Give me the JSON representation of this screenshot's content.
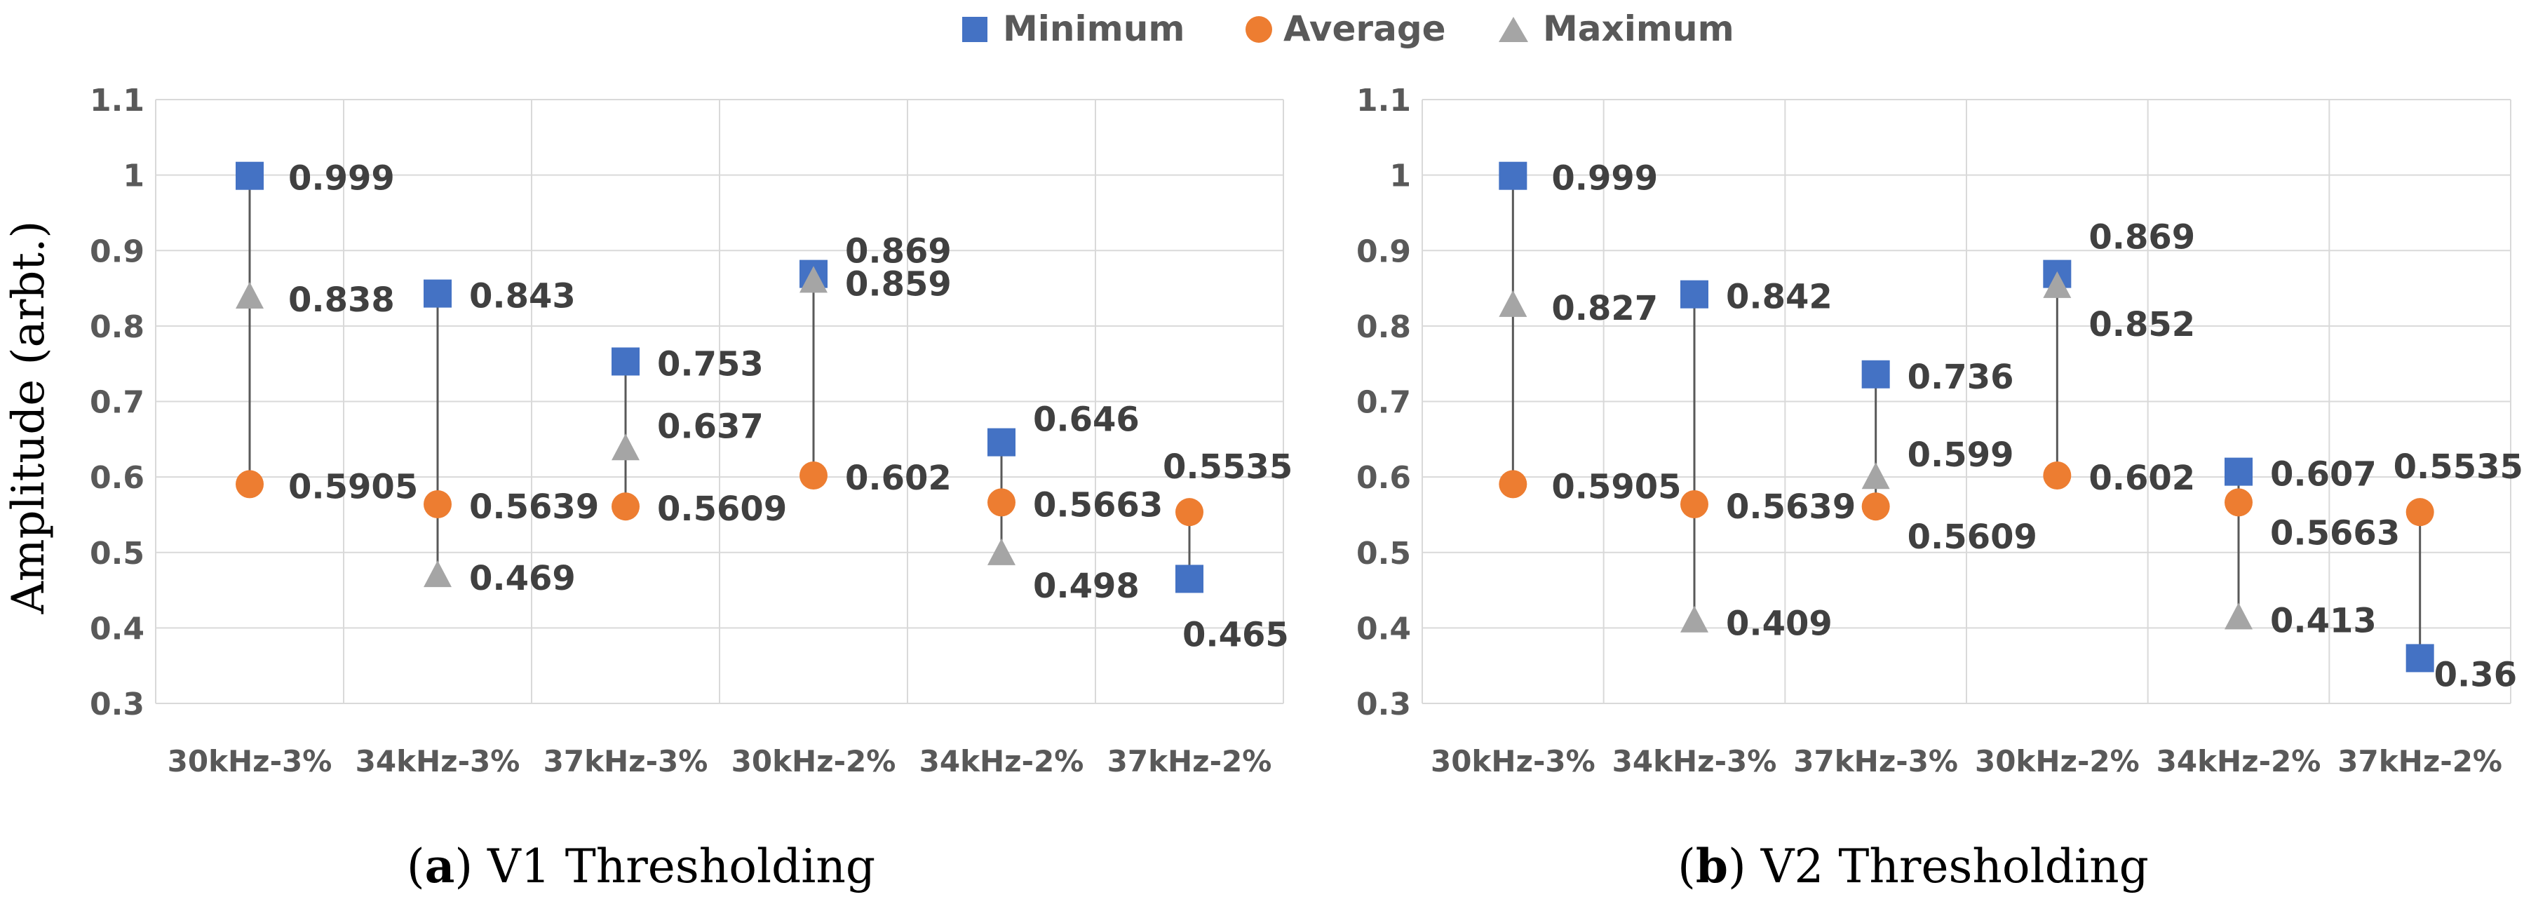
{
  "y_axis_label": "Amplitude (arbt.)",
  "legend": [
    {
      "name": "Minimum",
      "color": "#4472C4",
      "shape": "square"
    },
    {
      "name": "Average",
      "color": "#ED7D31",
      "shape": "circle"
    },
    {
      "name": "Maximum",
      "color": "#A5A5A5",
      "shape": "triangle"
    }
  ],
  "chart_data": [
    {
      "type": "scatter",
      "caption_letter": "a",
      "caption_text": " V1 Thresholding",
      "categories": [
        "30kHz-3%",
        "34kHz-3%",
        "37kHz-3%",
        "30kHz-2%",
        "34kHz-2%",
        "37kHz-2%"
      ],
      "series": [
        {
          "name": "Minimum",
          "values": [
            0.999,
            0.843,
            0.753,
            0.869,
            0.646,
            0.465
          ]
        },
        {
          "name": "Average",
          "values": [
            0.5905,
            0.5639,
            0.5609,
            0.602,
            0.5663,
            0.5535
          ]
        },
        {
          "name": "Maximum",
          "values": [
            0.838,
            0.469,
            0.637,
            0.859,
            0.498,
            null
          ]
        }
      ],
      "ylim": [
        0.3,
        1.1
      ],
      "yticks": [
        "0.3",
        "0.4",
        "0.5",
        "0.6",
        "0.7",
        "0.8",
        "0.9",
        "1",
        "1.1"
      ],
      "labels": {
        "Minimum": [
          "0.999",
          "0.843",
          "0.753",
          "0.869",
          "0.646",
          "0.465"
        ],
        "Average": [
          "0.5905",
          "0.5639",
          "0.5609",
          "0.602",
          "0.5663",
          "0.5535"
        ],
        "Maximum": [
          "0.838",
          "0.469",
          "0.637",
          "0.859",
          "0.498",
          ""
        ]
      }
    },
    {
      "type": "scatter",
      "caption_letter": "b",
      "caption_text": " V2 Thresholding",
      "categories": [
        "30kHz-3%",
        "34kHz-3%",
        "37kHz-3%",
        "30kHz-2%",
        "34kHz-2%",
        "37kHz-2%"
      ],
      "series": [
        {
          "name": "Minimum",
          "values": [
            0.999,
            0.842,
            0.736,
            0.869,
            0.607,
            0.36
          ]
        },
        {
          "name": "Average",
          "values": [
            0.5905,
            0.5639,
            0.5609,
            0.602,
            0.5663,
            0.5535
          ]
        },
        {
          "name": "Maximum",
          "values": [
            0.827,
            0.409,
            0.599,
            0.852,
            0.413,
            null
          ]
        }
      ],
      "ylim": [
        0.3,
        1.1
      ],
      "yticks": [
        "0.3",
        "0.4",
        "0.5",
        "0.6",
        "0.7",
        "0.8",
        "0.9",
        "1",
        "1.1"
      ],
      "labels": {
        "Minimum": [
          "0.999",
          "0.842",
          "0.736",
          "0.869",
          "0.607",
          "0.36"
        ],
        "Average": [
          "0.5905",
          "0.5639",
          "0.5609",
          "0.602",
          "0.5663",
          "0.5535"
        ],
        "Maximum": [
          "0.827",
          "0.409",
          "0.599",
          "0.852",
          "0.413",
          ""
        ]
      }
    }
  ]
}
